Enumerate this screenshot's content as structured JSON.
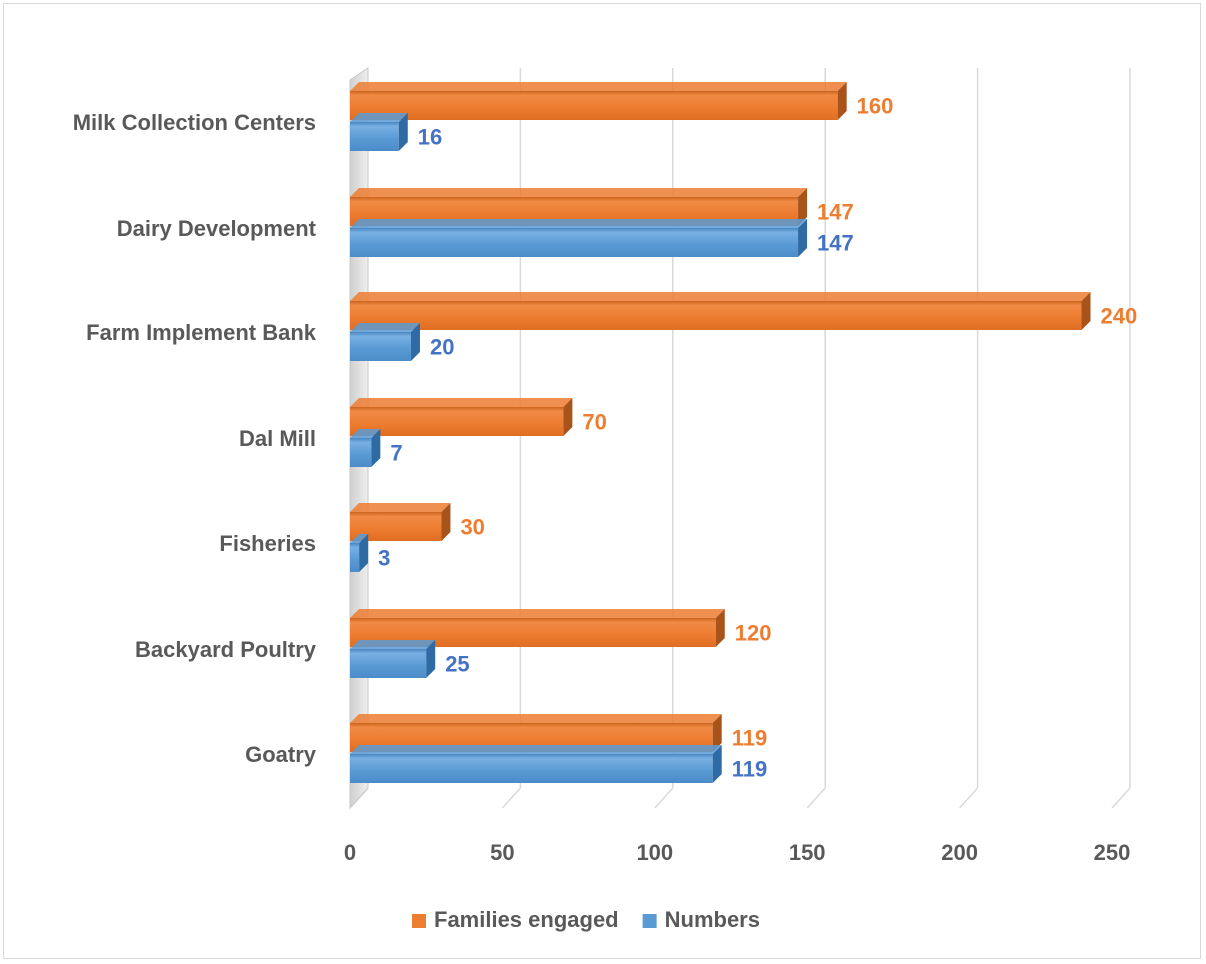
{
  "chart_data": {
    "type": "bar",
    "orientation": "horizontal",
    "style": "3d-clustered",
    "categories": [
      "Milk Collection Centers",
      "Dairy Development",
      "Farm Implement Bank",
      "Dal Mill",
      "Fisheries",
      "Backyard Poultry",
      "Goatry"
    ],
    "series": [
      {
        "name": "Families engaged",
        "values": [
          160,
          147,
          240,
          70,
          30,
          120,
          119
        ],
        "color": "#ed7d31"
      },
      {
        "name": "Numbers",
        "values": [
          16,
          147,
          20,
          7,
          3,
          25,
          119
        ],
        "color": "#5b9bd5"
      }
    ],
    "xlim": [
      0,
      250
    ],
    "xticks": [
      "0",
      "50",
      "100",
      "150",
      "200",
      "250"
    ],
    "grid": true,
    "data_labels": true,
    "legend_position": "bottom",
    "colors": {
      "axis_text": "#595959",
      "grid": "#d9d9d9",
      "label_orange": "#ed7d31",
      "label_blue": "#4472c4"
    }
  }
}
